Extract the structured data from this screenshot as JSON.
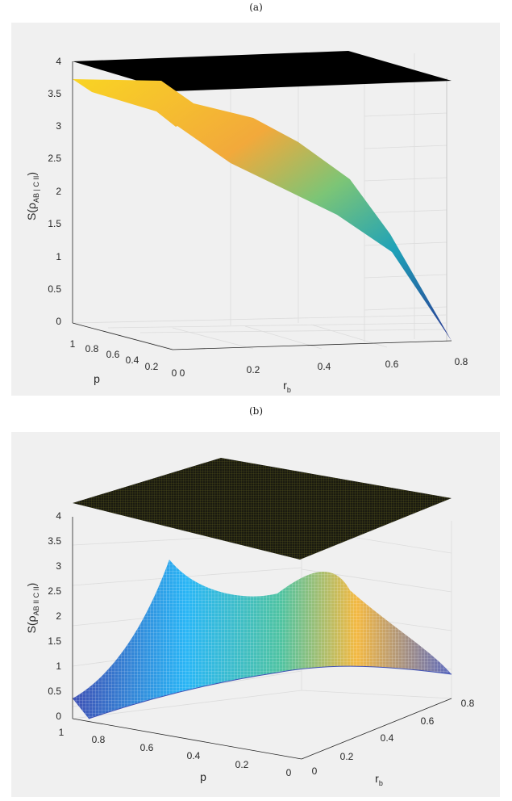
{
  "captions": {
    "a": "(a)",
    "b": "(b)"
  },
  "chart_data": [
    {
      "id": "a",
      "type": "surface",
      "ylabel": "S(ρ",
      "ylabel_sub": "AB | C II",
      "ylabel_tail": ")",
      "xlabel": "r",
      "xlabel_sub": "b",
      "plabel": "p",
      "zlim": [
        0,
        4
      ],
      "z_ticks": [
        "0",
        "0.5",
        "1",
        "1.5",
        "2",
        "2.5",
        "3",
        "3.5",
        "4"
      ],
      "rb_ticks": [
        "0",
        "0.2",
        "0.4",
        "0.6",
        "0.8"
      ],
      "p_ticks": [
        "1",
        "0.8",
        "0.6",
        "0.4",
        "0.2",
        "0"
      ],
      "plane_value": 4,
      "curve": {
        "rb": [
          0,
          0.1,
          0.2,
          0.3,
          0.4,
          0.5,
          0.6,
          0.7,
          0.75
        ],
        "S": [
          3.72,
          3.6,
          3.35,
          3.0,
          2.5,
          1.95,
          1.25,
          0.55,
          0
        ]
      },
      "colors": {
        "plane": "#000000",
        "high": "#f9d423",
        "mid": "#26a69a",
        "low": "#283593"
      }
    },
    {
      "id": "b",
      "type": "surface",
      "ylabel": "S(ρ",
      "ylabel_sub": "AB II C II",
      "ylabel_tail": ")",
      "xlabel": "r",
      "xlabel_sub": "b",
      "plabel": "p",
      "zlim": [
        0,
        4
      ],
      "z_ticks": [
        "0",
        "0.5",
        "1",
        "1.5",
        "2",
        "2.5",
        "3",
        "3.5",
        "4"
      ],
      "rb_ticks": [
        "0",
        "0.2",
        "0.4",
        "0.6",
        "0.8"
      ],
      "p_ticks": [
        "1",
        "0.8",
        "0.6",
        "0.4",
        "0.2",
        "0"
      ],
      "plane_value": 4,
      "peak_value": 2.8,
      "colors": {
        "plane": "#1a1a10",
        "plane_mesh": "#8a8a20",
        "high": "#f4b942",
        "mid": "#4fc3a1",
        "low": "#3949ab",
        "edge": "#42a5f5"
      }
    }
  ]
}
